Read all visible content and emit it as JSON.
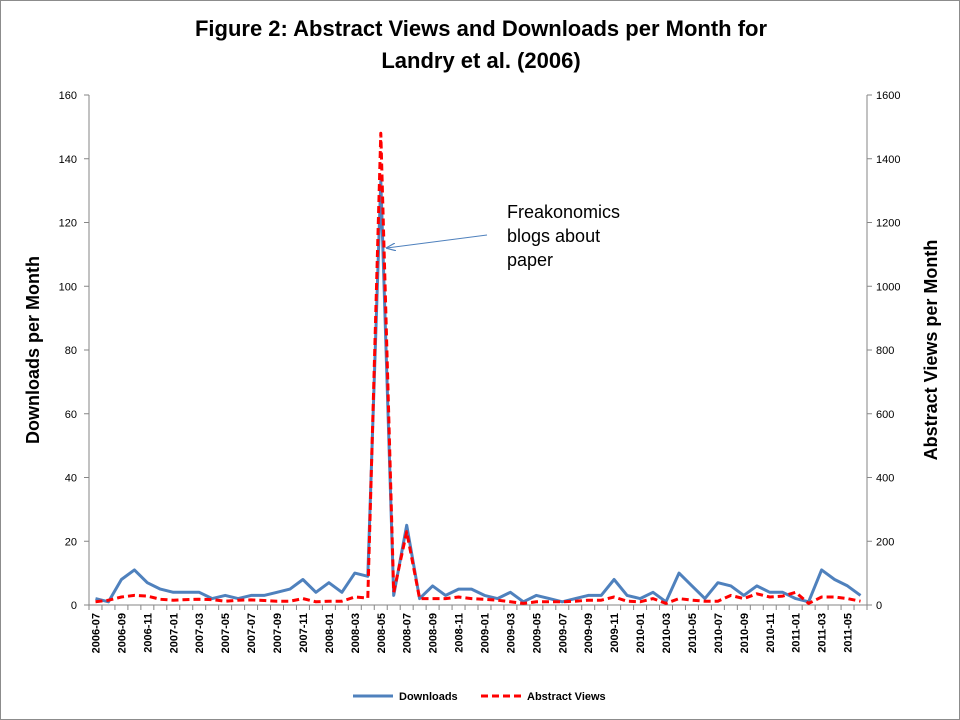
{
  "title_line1": "Figure 2: Abstract Views and Downloads per Month for",
  "title_line2": "Landry et al. (2006)",
  "chart_data": {
    "type": "line",
    "title": "Figure 2: Abstract Views and Downloads per Month for Landry et al. (2006)",
    "x": [
      "2006-07",
      "2006-08",
      "2006-09",
      "2006-10",
      "2006-11",
      "2006-12",
      "2007-01",
      "2007-02",
      "2007-03",
      "2007-04",
      "2007-05",
      "2007-06",
      "2007-07",
      "2007-08",
      "2007-09",
      "2007-10",
      "2007-11",
      "2007-12",
      "2008-01",
      "2008-02",
      "2008-03",
      "2008-04",
      "2008-05",
      "2008-06",
      "2008-07",
      "2008-08",
      "2008-09",
      "2008-10",
      "2008-11",
      "2008-12",
      "2009-01",
      "2009-02",
      "2009-03",
      "2009-04",
      "2009-05",
      "2009-06",
      "2009-07",
      "2009-08",
      "2009-09",
      "2009-10",
      "2009-11",
      "2009-12",
      "2010-01",
      "2010-02",
      "2010-03",
      "2010-04",
      "2010-05",
      "2010-06",
      "2010-07",
      "2010-08",
      "2010-09",
      "2010-10",
      "2010-11",
      "2010-12",
      "2011-01",
      "2011-02",
      "2011-03",
      "2011-04",
      "2011-05",
      "2011-06"
    ],
    "x_tick_labels": [
      "2006-07",
      "2006-09",
      "2006-11",
      "2007-01",
      "2007-03",
      "2007-05",
      "2007-07",
      "2007-09",
      "2007-11",
      "2008-01",
      "2008-03",
      "2008-05",
      "2008-07",
      "2008-09",
      "2008-11",
      "2009-01",
      "2009-03",
      "2009-05",
      "2009-07",
      "2009-09",
      "2009-11",
      "2010-01",
      "2010-03",
      "2010-05",
      "2010-07",
      "2010-09",
      "2010-11",
      "2011-01",
      "2011-03",
      "2011-05"
    ],
    "ylabel": "Downloads per Month",
    "y2label": "Abstract Views per Month",
    "ylim": [
      0,
      160
    ],
    "y2lim": [
      0,
      1600
    ],
    "yticks": [
      "0",
      "20",
      "40",
      "60",
      "80",
      "100",
      "120",
      "140",
      "160"
    ],
    "y2ticks": [
      "0",
      "200",
      "400",
      "600",
      "800",
      "1000",
      "1200",
      "1400",
      "1600"
    ],
    "grid": false,
    "legend_position": "bottom",
    "series": [
      {
        "name": "Downloads",
        "axis": "left",
        "color": "#4f81bd",
        "style": "solid",
        "values": [
          2,
          1,
          8,
          11,
          7,
          5,
          4,
          4,
          4,
          2,
          3,
          2,
          3,
          3,
          4,
          5,
          8,
          4,
          7,
          4,
          10,
          9,
          133,
          3,
          25,
          2,
          6,
          3,
          5,
          5,
          3,
          2,
          4,
          1,
          3,
          2,
          1,
          2,
          3,
          3,
          8,
          3,
          2,
          4,
          1,
          10,
          6,
          2,
          7,
          6,
          3,
          6,
          4,
          4,
          2,
          1,
          11,
          8,
          6,
          3
        ]
      },
      {
        "name": "Abstract Views",
        "axis": "right",
        "color": "#ff0000",
        "style": "dashed",
        "values": [
          10,
          15,
          25,
          30,
          28,
          18,
          15,
          17,
          18,
          17,
          12,
          15,
          16,
          14,
          12,
          12,
          20,
          10,
          12,
          12,
          25,
          22,
          1480,
          40,
          230,
          20,
          20,
          20,
          25,
          20,
          18,
          15,
          10,
          5,
          10,
          10,
          10,
          12,
          15,
          15,
          25,
          12,
          10,
          20,
          5,
          20,
          15,
          12,
          12,
          30,
          20,
          35,
          25,
          28,
          40,
          5,
          25,
          25,
          20,
          12
        ]
      }
    ],
    "annotations": [
      {
        "text_lines": [
          "Freakonomics",
          "blogs about",
          "paper"
        ],
        "points_to": {
          "x": "2008-05",
          "y2": 1120
        }
      }
    ]
  }
}
